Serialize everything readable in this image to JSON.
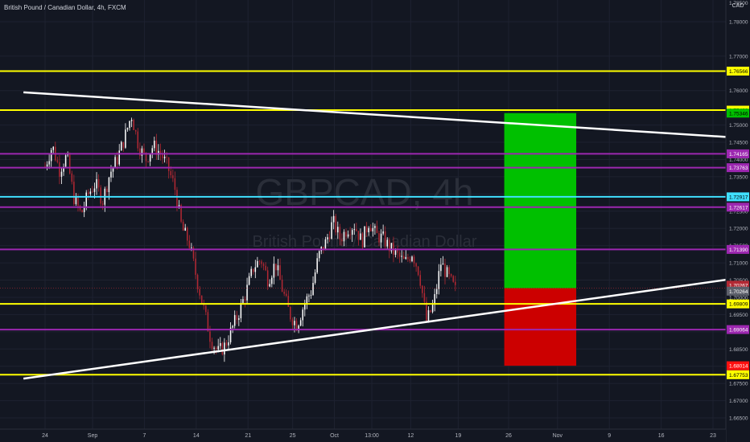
{
  "header": {
    "title": "British Pound / Canadian Dollar, 4h, FXCM",
    "currency_unit": "CAD"
  },
  "watermark": {
    "symbol": "GBPCAD, 4h",
    "description": "British Pound / Canadian Dollar"
  },
  "colors": {
    "background": "#131722",
    "grid": "#1e2230",
    "text": "#b2b5be",
    "up": "#ffffff",
    "down": "#b22833",
    "yellow": "#ffff00",
    "purple": "#9c27b0",
    "cyan": "#40e0ff",
    "trendline": "#ffffff",
    "target_zone": "#00c000",
    "stop_zone": "#cc0000"
  },
  "chart_data": {
    "type": "candlestick",
    "symbol": "GBPCAD",
    "timeframe": "4h",
    "y_axis": {
      "ticks": [
        "1.78000",
        "1.77000",
        "1.76000",
        "1.75000",
        "1.74500",
        "1.74000",
        "1.73500",
        "1.73000",
        "1.72500",
        "1.72000",
        "1.71500",
        "1.71000",
        "1.70500",
        "1.70000",
        "1.69500",
        "1.69000",
        "1.68500",
        "1.68000",
        "1.67500",
        "1.67000",
        "1.66500"
      ],
      "top_partial_label": "1.78500",
      "ylim": [
        1.664,
        1.789
      ]
    },
    "x_axis": {
      "ticks": [
        "24",
        "Sep",
        "7",
        "14",
        "21",
        "25",
        "Oct",
        "13:00",
        "12",
        "19",
        "26",
        "Nov",
        "9",
        "16",
        "23"
      ],
      "tick_index": [
        0,
        3.3,
        6.9,
        10.5,
        14.1,
        17.2,
        20.1,
        22.7,
        25.4,
        28.7,
        32.2,
        35.6,
        39.2,
        42.8,
        46.4
      ]
    },
    "price_lines": [
      {
        "price": "1.76566",
        "value": 1.76566,
        "color": "yellow"
      },
      {
        "price": "1.75433",
        "value": 1.75433,
        "color": "yellow"
      },
      {
        "price": "1.74165",
        "value": 1.74165,
        "color": "purple"
      },
      {
        "price": "1.73763",
        "value": 1.73763,
        "color": "purple"
      },
      {
        "price": "1.72917",
        "value": 1.72917,
        "color": "cyan"
      },
      {
        "price": "1.72617",
        "value": 1.72617,
        "color": "purple"
      },
      {
        "price": "1.71390",
        "value": 1.7139,
        "color": "purple"
      },
      {
        "price": "1.69809",
        "value": 1.69809,
        "color": "yellow"
      },
      {
        "price": "1.69064",
        "value": 1.69064,
        "color": "purple"
      },
      {
        "price": "1.67753",
        "value": 1.67753,
        "color": "yellow"
      }
    ],
    "position": {
      "entry": "1.70267",
      "entry_value": 1.70267,
      "target": "1.75346",
      "target_value": 1.75346,
      "stop": "1.68014",
      "stop_value": 1.68014,
      "start_index": 31.9,
      "end_index": 36.9
    },
    "current_price": "1.70264",
    "current_value": 1.70264,
    "trendlines": [
      {
        "from": [
          -1.5,
          1.7595
        ],
        "to": [
          47.5,
          1.7465
        ]
      },
      {
        "from": [
          -1.5,
          1.6764
        ],
        "to": [
          47.5,
          1.7052
        ]
      }
    ],
    "candles_close_path": [
      [
        0,
        1.738
      ],
      [
        0.5,
        1.744
      ],
      [
        1.0,
        1.737
      ],
      [
        1.5,
        1.741
      ],
      [
        2.0,
        1.729
      ],
      [
        2.5,
        1.724
      ],
      [
        3.0,
        1.73
      ],
      [
        3.5,
        1.733
      ],
      [
        4.0,
        1.728
      ],
      [
        4.5,
        1.736
      ],
      [
        5.0,
        1.74
      ],
      [
        5.5,
        1.746
      ],
      [
        6.0,
        1.753
      ],
      [
        6.5,
        1.744
      ],
      [
        7.0,
        1.74
      ],
      [
        7.5,
        1.744
      ],
      [
        8.0,
        1.742
      ],
      [
        8.5,
        1.738
      ],
      [
        9.0,
        1.732
      ],
      [
        9.5,
        1.72
      ],
      [
        10.0,
        1.716
      ],
      [
        10.5,
        1.706
      ],
      [
        11.0,
        1.697
      ],
      [
        11.5,
        1.688
      ],
      [
        12.0,
        1.684
      ],
      [
        12.5,
        1.686
      ],
      [
        13.0,
        1.691
      ],
      [
        13.5,
        1.696
      ],
      [
        14.0,
        1.702
      ],
      [
        14.5,
        1.709
      ],
      [
        15.0,
        1.711
      ],
      [
        15.5,
        1.705
      ],
      [
        16.0,
        1.71
      ],
      [
        16.5,
        1.702
      ],
      [
        17.0,
        1.695
      ],
      [
        17.5,
        1.692
      ],
      [
        18.0,
        1.698
      ],
      [
        18.5,
        1.702
      ],
      [
        19.0,
        1.712
      ],
      [
        19.5,
        1.716
      ],
      [
        20.0,
        1.722
      ],
      [
        20.5,
        1.717
      ],
      [
        21.0,
        1.72
      ],
      [
        21.5,
        1.721
      ],
      [
        22.0,
        1.716
      ],
      [
        22.5,
        1.722
      ],
      [
        23.0,
        1.718
      ],
      [
        23.5,
        1.717
      ],
      [
        24.0,
        1.714
      ],
      [
        24.5,
        1.712
      ],
      [
        25.0,
        1.71
      ],
      [
        25.5,
        1.713
      ],
      [
        26.0,
        1.707
      ],
      [
        26.5,
        1.693
      ],
      [
        27.0,
        1.698
      ],
      [
        27.5,
        1.71
      ],
      [
        28.0,
        1.706
      ],
      [
        28.5,
        1.702
      ]
    ]
  }
}
